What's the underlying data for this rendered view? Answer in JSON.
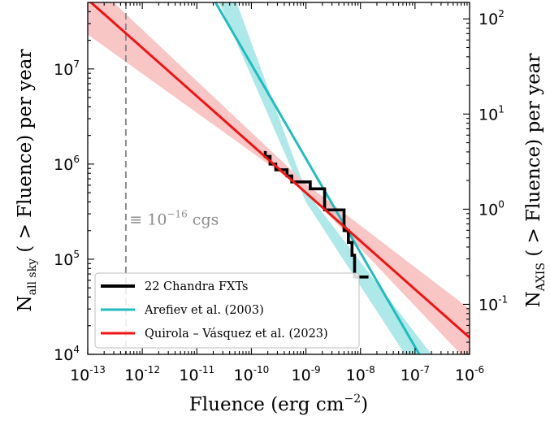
{
  "chart_data": {
    "type": "line",
    "x_scale": "log",
    "y_scale": "log",
    "xlim": [
      1e-13,
      1e-06
    ],
    "ylim": [
      10000,
      50000000
    ],
    "y2lim": [
      0.0298,
      148.9
    ],
    "x_tick_labels": [
      {
        "value": 1e-13,
        "base": "10",
        "exp": "-13"
      },
      {
        "value": 1e-12,
        "base": "10",
        "exp": "-12"
      },
      {
        "value": 1e-11,
        "base": "10",
        "exp": "-11"
      },
      {
        "value": 1e-10,
        "base": "10",
        "exp": "-10"
      },
      {
        "value": 1e-09,
        "base": "10",
        "exp": "-9"
      },
      {
        "value": 1e-08,
        "base": "10",
        "exp": "-8"
      },
      {
        "value": 1e-07,
        "base": "10",
        "exp": "-7"
      },
      {
        "value": 1e-06,
        "base": "10",
        "exp": "-6"
      }
    ],
    "y_tick_labels": [
      {
        "value": 10000,
        "base": "10",
        "exp": "4"
      },
      {
        "value": 100000,
        "base": "10",
        "exp": "5"
      },
      {
        "value": 1000000,
        "base": "10",
        "exp": "6"
      },
      {
        "value": 10000000,
        "base": "10",
        "exp": "7"
      }
    ],
    "y2_tick_labels": [
      {
        "value": 0.1,
        "base": "10",
        "exp": "-1"
      },
      {
        "value": 1,
        "base": "10",
        "exp": "0"
      },
      {
        "value": 10,
        "base": "10",
        "exp": "1"
      },
      {
        "value": 100,
        "base": "10",
        "exp": "2"
      }
    ],
    "xlabel_main": "Fluence (erg cm",
    "xlabel_exp": "−2",
    "xlabel_tail": ")",
    "ylabel_main": "N",
    "ylabel_sub": "all sky",
    "ylabel_tail": " ( > Fluence) per year",
    "y2label_main": "N",
    "y2label_sub": "AXIS",
    "y2label_tail": " ( > Fluence) per year",
    "series": [
      {
        "name": "22 Chandra FXTs",
        "kind": "step",
        "color": "#000000",
        "points": [
          [
            1.8e-10,
            1370000
          ],
          [
            1.8e-10,
            1200000
          ],
          [
            2.2e-10,
            1200000
          ],
          [
            2.2e-10,
            1000000
          ],
          [
            2.8e-10,
            1000000
          ],
          [
            2.8e-10,
            870000
          ],
          [
            4.5e-10,
            870000
          ],
          [
            4.5e-10,
            750000
          ],
          [
            5.5e-10,
            750000
          ],
          [
            5.5e-10,
            650000
          ],
          [
            1.2e-09,
            650000
          ],
          [
            1.2e-09,
            550000
          ],
          [
            2.2e-09,
            550000
          ],
          [
            2.2e-09,
            330000
          ],
          [
            5e-09,
            330000
          ],
          [
            5e-09,
            200000
          ],
          [
            6e-09,
            200000
          ],
          [
            6e-09,
            150000
          ],
          [
            7e-09,
            150000
          ],
          [
            7e-09,
            110000
          ],
          [
            7.8e-09,
            110000
          ],
          [
            7.8e-09,
            65000
          ],
          [
            1.4e-08,
            65000
          ]
        ]
      },
      {
        "name": "Arefiev et al. (2003)",
        "kind": "powerlaw",
        "color": "#1ebebe",
        "band_color": "#aee8e8",
        "points": [
          [
            2.2e-11,
            50000000
          ],
          [
            1.2e-07,
            10000
          ]
        ],
        "band_upper": [
          [
            2.2e-11,
            200000000
          ],
          [
            1e-09,
            520000
          ],
          [
            2e-07,
            10000
          ]
        ],
        "band_lower": [
          [
            9e-12,
            200000000
          ],
          [
            1e-09,
            400000
          ],
          [
            6.5e-08,
            10000
          ]
        ]
      },
      {
        "name": "Quirola – Vásquez et al. (2023)",
        "kind": "powerlaw",
        "color": "#f01414",
        "band_color": "#f9c6c6",
        "points": [
          [
            8e-14,
            60000000
          ],
          [
            1e-06,
            15000
          ]
        ],
        "band_upper": [
          [
            1e-13,
            90000000
          ],
          [
            1e-09,
            620000
          ],
          [
            1e-06,
            30000
          ]
        ],
        "band_lower": [
          [
            1e-13,
            23000000
          ],
          [
            1e-09,
            520000
          ],
          [
            1e-06,
            8000
          ]
        ]
      }
    ],
    "vline": {
      "x": 5e-13,
      "color": "#8c8c8c"
    },
    "annotation": {
      "prefix": "≡ 10",
      "exp": "−16",
      "suffix": " cgs",
      "x": 5.8e-13,
      "y": 230000
    },
    "legend": {
      "placement": "lower-left"
    }
  }
}
